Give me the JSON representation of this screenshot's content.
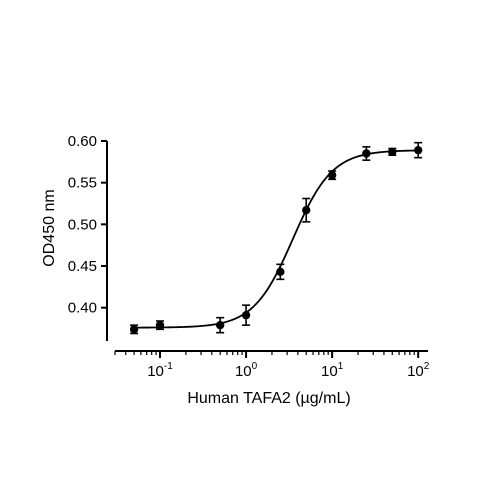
{
  "chart_data": {
    "type": "scatter",
    "title": "",
    "xlabel": "Human TAFA2 (µg/mL)",
    "ylabel": "OD450 nm",
    "x_scale": "log",
    "xlim": [
      0.03,
      130
    ],
    "ylim": [
      0.36,
      0.6
    ],
    "y_ticks": [
      0.4,
      0.45,
      0.5,
      0.55,
      0.6
    ],
    "y_tick_labels": [
      "0.40",
      "0.45",
      "0.50",
      "0.55",
      "0.60"
    ],
    "x_ticks": [
      {
        "base": "10",
        "exp": "-1",
        "value": 0.1
      },
      {
        "base": "10",
        "exp": "0",
        "value": 1
      },
      {
        "base": "10",
        "exp": "1",
        "value": 10
      },
      {
        "base": "10",
        "exp": "2",
        "value": 100
      }
    ],
    "grid": false,
    "series": [
      {
        "marker": "circle",
        "color": "#000000",
        "x": [
          0.05,
          0.1,
          0.5,
          1,
          2.5,
          5,
          10,
          25,
          50,
          100
        ],
        "y": [
          0.374,
          0.379,
          0.379,
          0.391,
          0.443,
          0.517,
          0.559,
          0.585,
          0.587,
          0.589
        ],
        "error": [
          0.005,
          0.005,
          0.009,
          0.012,
          0.009,
          0.014,
          0.005,
          0.008,
          0.004,
          0.009
        ]
      }
    ],
    "fit_curve": {
      "model": "4PL",
      "bottom": 0.376,
      "top": 0.589,
      "ec50": 3.5,
      "hill": 1.9,
      "color": "#000000"
    }
  }
}
